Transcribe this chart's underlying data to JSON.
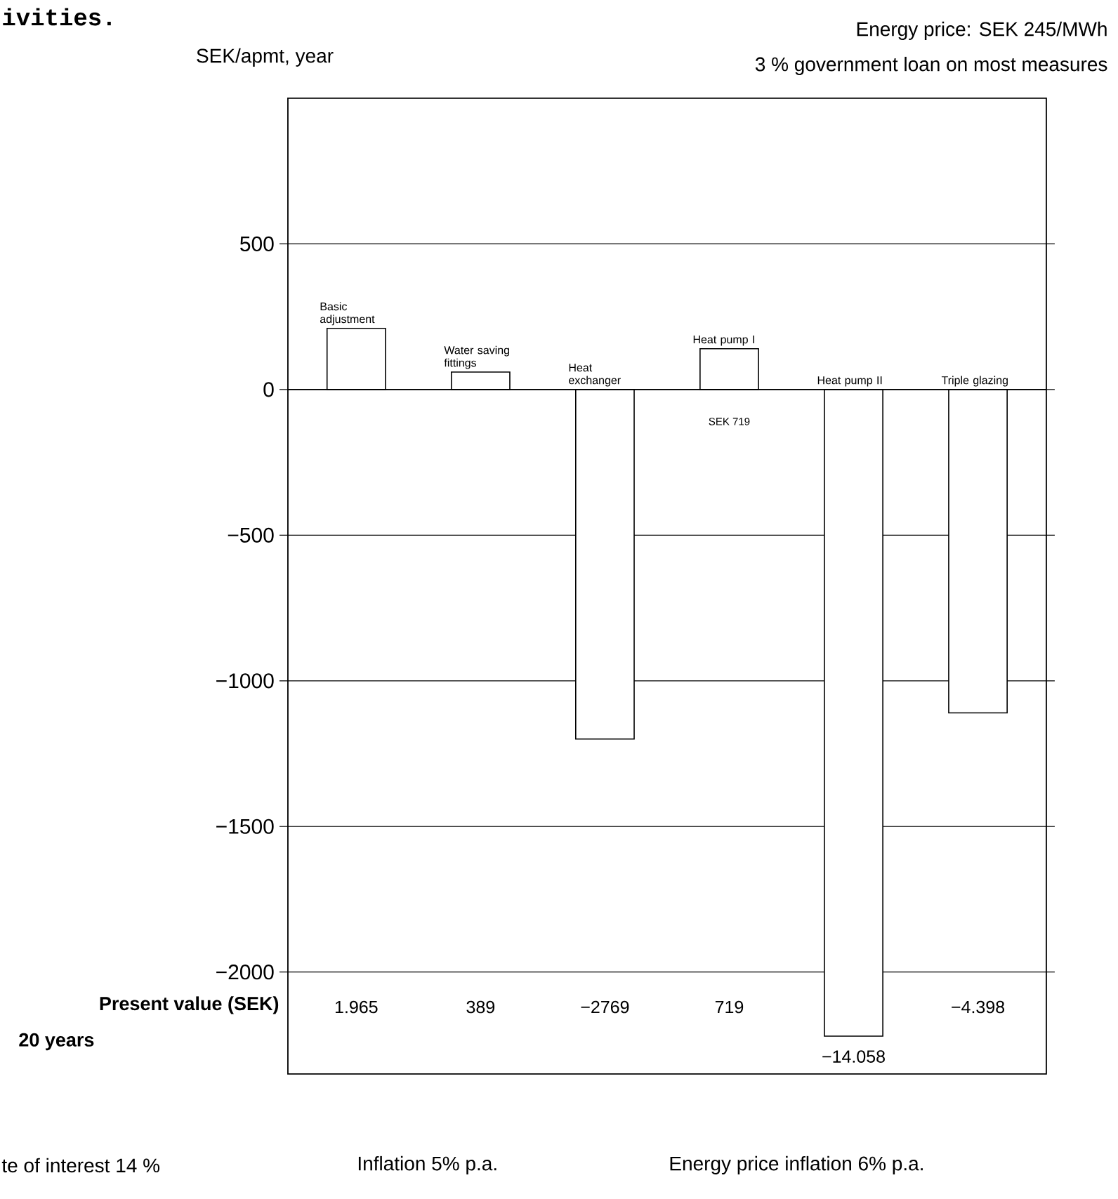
{
  "chart_data": {
    "type": "bar",
    "ylabel": "SEK/apmt, year",
    "categories": [
      "Basic adjustment",
      "Water saving fittings",
      "Heat exchanger",
      "Heat pump I",
      "Heat pump II",
      "Triple glazing"
    ],
    "values": [
      210,
      60,
      -1200,
      140,
      -2220,
      -1110
    ],
    "color": "#000000",
    "ylim": [
      -2350,
      1000
    ],
    "yticks": [
      {
        "value": -2000,
        "label": "−2000"
      },
      {
        "value": -1500,
        "label": "−1500"
      },
      {
        "value": -1000,
        "label": "−1000"
      },
      {
        "value": -500,
        "label": "−500"
      },
      0,
      500
    ],
    "grid": "y",
    "tick_labels": "y",
    "annotations": [
      "ivities.",
      "Energy price: SEK 245/MWh",
      "3 % government loan on most measures",
      "SEK 719",
      "Present value (SEK)",
      "20 years",
      "1.965",
      "389",
      "−2769",
      "719",
      "−14.058",
      "−4.398",
      "te of interest 14 %",
      "Inflation 5% p.a.",
      "Energy price inflation 6% p.a."
    ]
  }
}
